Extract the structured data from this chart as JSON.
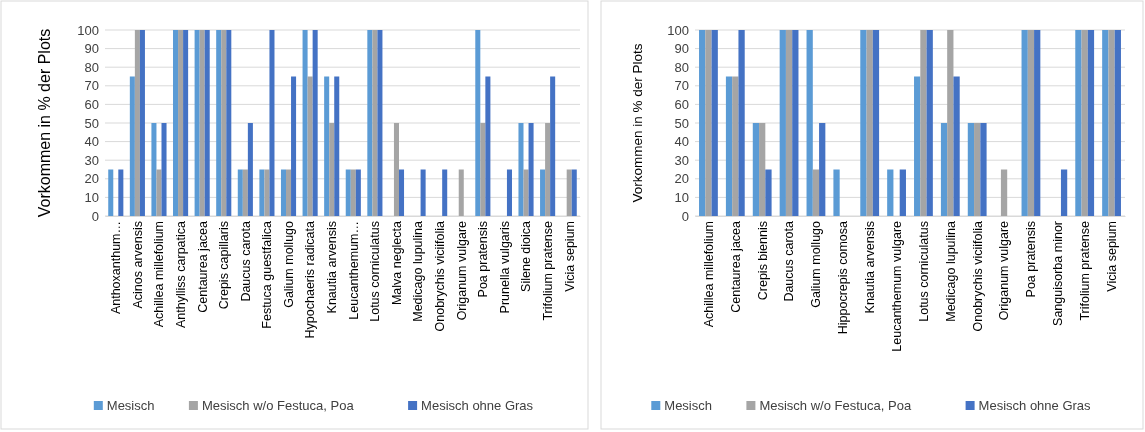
{
  "chart_data": [
    {
      "type": "bar",
      "ylabel": "Vorkommen in % der Plots",
      "categories": [
        "Anthoxanthum…",
        "Acinos arvensis",
        "Achillea millefolium",
        "Anthylliss carpatica",
        "Centaurea jacea",
        "Crepis capillaris",
        "Daucus carota",
        "Festuca guestfalica",
        "Galium mollugo",
        "Hypochaeris radicata",
        "Knautia arvensis",
        "Leucanthemum…",
        "Lotus corniculatus",
        "Malva neglecta",
        "Medicago lupulina",
        "Onobrychis viciifolia",
        "Origanum vulgare",
        "Poa pratensis",
        "Prunella vulgaris",
        "Silene dioica",
        "Trifolium pratense",
        "Vicia sepium"
      ],
      "series": [
        {
          "name": "Mesisch",
          "color": "#5b9bd5",
          "values": [
            25,
            75,
            50,
            100,
            100,
            100,
            25,
            25,
            25,
            100,
            75,
            25,
            100,
            0,
            0,
            0,
            0,
            100,
            0,
            50,
            25,
            0
          ]
        },
        {
          "name": "Mesisch w/o Festuca, Poa",
          "color": "#a5a5a5",
          "values": [
            0,
            100,
            25,
            100,
            100,
            100,
            25,
            25,
            25,
            75,
            50,
            25,
            100,
            50,
            0,
            0,
            25,
            50,
            0,
            25,
            50,
            25
          ]
        },
        {
          "name": "Mesisch ohne Gras",
          "color": "#4472c4",
          "values": [
            25,
            100,
            50,
            100,
            100,
            100,
            50,
            100,
            75,
            100,
            75,
            25,
            100,
            25,
            25,
            25,
            0,
            75,
            25,
            50,
            75,
            25
          ]
        }
      ],
      "ylim": [
        0,
        100
      ],
      "yticks": [
        0,
        10,
        20,
        30,
        40,
        50,
        60,
        70,
        80,
        90,
        100
      ],
      "grid": "y",
      "legend": "bottom"
    },
    {
      "type": "bar",
      "ylabel": "Vorkommen in % der Plots",
      "categories": [
        "Achillea millefolium",
        "Centaurea jacea",
        "Crepis biennis",
        "Daucus carota",
        "Galium mollugo",
        "Hippocrepis comosa",
        "Knautia arvensis",
        "Leucanthemum vulgare",
        "Lotus corniculatus",
        "Medicago lupulina",
        "Onobrychis viciifolia",
        "Origanum vulgare",
        "Poa pratensis",
        "Sanguisorba minor",
        "Trifolium pratense",
        "Vicia sepium"
      ],
      "series": [
        {
          "name": "Mesisch",
          "color": "#5b9bd5",
          "values": [
            100,
            75,
            50,
            100,
            100,
            25,
            100,
            25,
            75,
            50,
            50,
            0,
            100,
            0,
            100,
            100
          ]
        },
        {
          "name": "Mesisch w/o Festuca, Poa",
          "color": "#a5a5a5",
          "values": [
            100,
            75,
            50,
            100,
            25,
            0,
            100,
            0,
            100,
            100,
            50,
            25,
            100,
            0,
            100,
            100
          ]
        },
        {
          "name": "Mesisch ohne Gras",
          "color": "#4472c4",
          "values": [
            100,
            100,
            25,
            100,
            50,
            0,
            100,
            25,
            100,
            75,
            50,
            0,
            100,
            25,
            100,
            100
          ]
        }
      ],
      "ylim": [
        0,
        100
      ],
      "yticks": [
        0,
        10,
        20,
        30,
        40,
        50,
        60,
        70,
        80,
        90,
        100
      ],
      "grid": "y",
      "legend": "bottom"
    }
  ]
}
